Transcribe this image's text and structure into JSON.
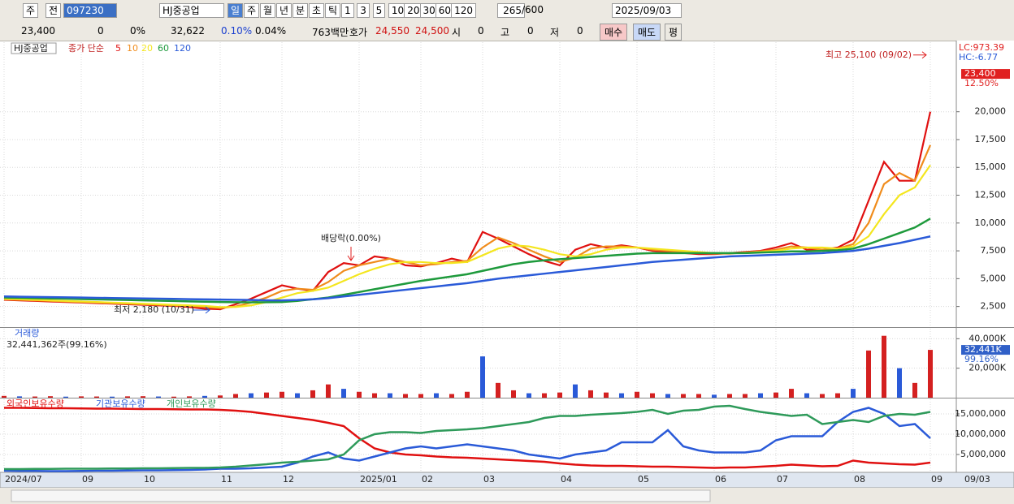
{
  "toolbar": {
    "market": "주",
    "prev": "전",
    "code": "097230",
    "name": "HJ중공업",
    "periods": [
      "일",
      "주",
      "월",
      "년",
      "분",
      "초",
      "틱"
    ],
    "minutes": [
      "1",
      "3",
      "5",
      "10",
      "20",
      "30",
      "60",
      "120"
    ],
    "count": "265",
    "max_count": "/600",
    "date": "2025/09/03"
  },
  "quote_bar": {
    "price": "23,400",
    "change": "0",
    "change_rate": "0%",
    "volume": "32,622",
    "ratio1": "0.10%",
    "ratio2": "0.04%",
    "amount": "763백만",
    "ask_label": "호가",
    "ask": "24,550",
    "bid": "24,500",
    "open_label": "시",
    "open": "0",
    "high_label": "고",
    "high": "0",
    "low_label": "저",
    "low": "0",
    "buy": "매수",
    "sell": "매도",
    "avg": "평"
  },
  "chart_data": [
    {
      "type": "line",
      "title": "HJ중공업",
      "subtitle": "종가 단순",
      "lc_label": "LC:973.39",
      "hc_label": "HC:-6.77",
      "ylim": [
        650,
        26250
      ],
      "yticks": [
        {
          "value": 2500,
          "label": "2,500"
        },
        {
          "value": 5000,
          "label": "5,000"
        },
        {
          "value": 7500,
          "label": "7,500"
        },
        {
          "value": 10000,
          "label": "10,000"
        },
        {
          "value": 12500,
          "label": "12,500"
        },
        {
          "value": 15000,
          "label": "15,000"
        },
        {
          "value": 17500,
          "label": "17,500"
        },
        {
          "value": 20000,
          "label": "20,000"
        }
      ],
      "grid": true,
      "last_label": {
        "value": 23400,
        "label": "23,400"
      },
      "last_change": "12.50%",
      "high_note": {
        "value": 25100,
        "label": "최고 25,100 (09/02)"
      },
      "low_note": {
        "value": 2180,
        "label": "최저 2,180 (10/31)"
      },
      "dividend_note": "배당락(0.00%)",
      "series": [
        {
          "name": "5",
          "color": "#e01010",
          "values": [
            3100,
            3050,
            3000,
            2950,
            2900,
            2850,
            2800,
            2750,
            2700,
            2650,
            2600,
            2550,
            2450,
            2300,
            2250,
            2700,
            3200,
            3800,
            4400,
            4100,
            3900,
            5600,
            6400,
            6200,
            7000,
            6800,
            6200,
            6100,
            6400,
            6800,
            6500,
            9200,
            8600,
            7900,
            7200,
            6600,
            6200,
            7600,
            8100,
            7800,
            8000,
            7800,
            7500,
            7400,
            7300,
            7200,
            7200,
            7300,
            7400,
            7500,
            7800,
            8200,
            7600,
            7600,
            7800,
            8500,
            12000,
            15500,
            13800,
            13800,
            20000
          ]
        },
        {
          "name": "10",
          "color": "#f08c1c",
          "values": [
            3150,
            3100,
            3050,
            3000,
            2950,
            2900,
            2850,
            2800,
            2750,
            2700,
            2650,
            2600,
            2550,
            2450,
            2350,
            2500,
            2850,
            3300,
            3900,
            4100,
            4000,
            4700,
            5700,
            6200,
            6500,
            6800,
            6500,
            6200,
            6300,
            6500,
            6600,
            7800,
            8700,
            8200,
            7600,
            7000,
            6500,
            6900,
            7700,
            7900,
            7900,
            7800,
            7600,
            7500,
            7400,
            7300,
            7250,
            7250,
            7350,
            7450,
            7600,
            7900,
            7800,
            7600,
            7700,
            8100,
            10000,
            13500,
            14500,
            13800,
            17000
          ]
        },
        {
          "name": "20",
          "color": "#f4e61e",
          "values": [
            3200,
            3150,
            3100,
            3050,
            3000,
            2950,
            2900,
            2850,
            2800,
            2750,
            2700,
            2650,
            2600,
            2550,
            2450,
            2450,
            2600,
            2900,
            3300,
            3700,
            3900,
            4200,
            4800,
            5400,
            5900,
            6300,
            6500,
            6500,
            6400,
            6400,
            6500,
            7100,
            7700,
            8000,
            7900,
            7600,
            7200,
            7000,
            7200,
            7600,
            7800,
            7800,
            7700,
            7600,
            7500,
            7400,
            7300,
            7300,
            7300,
            7400,
            7500,
            7700,
            7800,
            7800,
            7700,
            7900,
            8800,
            10800,
            12500,
            13200,
            15200
          ]
        },
        {
          "name": "60",
          "color": "#1e9a3c",
          "values": [
            3300,
            3280,
            3250,
            3220,
            3200,
            3170,
            3140,
            3110,
            3080,
            3050,
            3020,
            2990,
            2960,
            2930,
            2900,
            2880,
            2870,
            2880,
            2900,
            3000,
            3150,
            3300,
            3550,
            3800,
            4050,
            4300,
            4550,
            4800,
            5000,
            5200,
            5400,
            5700,
            6000,
            6300,
            6500,
            6650,
            6750,
            6850,
            6950,
            7050,
            7150,
            7250,
            7300,
            7300,
            7300,
            7300,
            7300,
            7300,
            7300,
            7350,
            7400,
            7450,
            7450,
            7500,
            7550,
            7700,
            8100,
            8600,
            9100,
            9600,
            10400
          ]
        },
        {
          "name": "120",
          "color": "#2a5ad8",
          "values": [
            3400,
            3380,
            3360,
            3340,
            3320,
            3300,
            3280,
            3260,
            3240,
            3220,
            3200,
            3180,
            3160,
            3140,
            3120,
            3100,
            3080,
            3060,
            3050,
            3080,
            3150,
            3250,
            3400,
            3550,
            3700,
            3850,
            4000,
            4150,
            4300,
            4450,
            4600,
            4800,
            5000,
            5150,
            5300,
            5450,
            5600,
            5750,
            5900,
            6050,
            6200,
            6350,
            6500,
            6600,
            6700,
            6800,
            6900,
            7000,
            7050,
            7100,
            7150,
            7200,
            7250,
            7300,
            7400,
            7500,
            7700,
            7950,
            8200,
            8500,
            8800
          ]
        }
      ]
    },
    {
      "type": "bar",
      "title": "거래량",
      "subtitle": "32,441,362주(99.16%)",
      "ylim": [
        0,
        46800
      ],
      "yticks": [
        {
          "value": 20000,
          "label": "20,000K"
        },
        {
          "value": 40000,
          "label": "40,000K"
        }
      ],
      "grid": true,
      "color": "#d42020",
      "last_label": {
        "value": 32441,
        "label": "32,441K"
      },
      "last_change": "99.16%",
      "values": [
        1200,
        900,
        800,
        1000,
        700,
        900,
        800,
        700,
        900,
        1000,
        800,
        700,
        900,
        1200,
        1500,
        2500,
        3000,
        3500,
        4000,
        3000,
        5000,
        9000,
        6000,
        4000,
        3000,
        3000,
        2500,
        2500,
        3000,
        2500,
        4000,
        28000,
        10000,
        5000,
        3000,
        3000,
        3500,
        9000,
        5000,
        3500,
        3000,
        4000,
        3000,
        2500,
        2500,
        2500,
        2000,
        2500,
        2500,
        3000,
        3500,
        6000,
        3000,
        2500,
        3000,
        6000,
        32000,
        42000,
        20000,
        10000,
        32441
      ]
    },
    {
      "type": "line",
      "ylim": [
        600000,
        18600000
      ],
      "yticks": [
        {
          "value": 5000000,
          "label": "5,000,000"
        },
        {
          "value": 10000000,
          "label": "10,000,000"
        },
        {
          "value": 15000000,
          "label": "15,000,000"
        }
      ],
      "grid": true,
      "categories": [
        "2024/07",
        null,
        null,
        null,
        null,
        "09",
        null,
        null,
        null,
        "10",
        null,
        null,
        null,
        null,
        "11",
        null,
        null,
        null,
        "12",
        null,
        null,
        null,
        null,
        "2025/01",
        null,
        null,
        null,
        "02",
        null,
        null,
        null,
        "03",
        null,
        null,
        null,
        null,
        "04",
        null,
        null,
        null,
        null,
        "05",
        null,
        null,
        null,
        null,
        "06",
        null,
        null,
        null,
        "07",
        null,
        null,
        null,
        null,
        "08",
        null,
        null,
        null,
        null,
        "09"
      ],
      "x_end_label": "09/03",
      "series": [
        {
          "name": "외국인보유수량",
          "color": "#e01010",
          "values": [
            16500000,
            16500000,
            16450000,
            16400000,
            16400000,
            16350000,
            16300000,
            16300000,
            16250000,
            16200000,
            16200000,
            16150000,
            16100000,
            16100000,
            16000000,
            15800000,
            15500000,
            15000000,
            14500000,
            14000000,
            13500000,
            12800000,
            12000000,
            9000000,
            6500000,
            5500000,
            5000000,
            4800000,
            4500000,
            4300000,
            4200000,
            4000000,
            3800000,
            3600000,
            3400000,
            3200000,
            2800000,
            2500000,
            2300000,
            2200000,
            2200000,
            2100000,
            2000000,
            2000000,
            1900000,
            1800000,
            1700000,
            1800000,
            1800000,
            2000000,
            2200000,
            2500000,
            2300000,
            2100000,
            2200000,
            3500000,
            3000000,
            2800000,
            2600000,
            2500000,
            3000000
          ]
        },
        {
          "name": "기관보유수량",
          "color": "#2a5ad8",
          "values": [
            1000000,
            950000,
            950000,
            900000,
            900000,
            950000,
            1000000,
            1000000,
            1050000,
            1100000,
            1100000,
            1150000,
            1200000,
            1300000,
            1500000,
            1500000,
            1600000,
            1800000,
            2000000,
            3000000,
            4500000,
            5500000,
            4000000,
            3500000,
            4500000,
            5500000,
            6500000,
            7000000,
            6500000,
            7000000,
            7500000,
            7000000,
            6500000,
            6000000,
            5000000,
            4500000,
            4000000,
            5000000,
            5500000,
            6000000,
            8000000,
            8000000,
            8000000,
            11000000,
            7000000,
            6000000,
            5500000,
            5500000,
            5500000,
            6000000,
            8500000,
            9500000,
            9500000,
            9500000,
            13000000,
            15500000,
            16500000,
            15000000,
            12000000,
            12500000,
            9000000
          ]
        },
        {
          "name": "개인보유수량",
          "color": "#2e9a5a",
          "values": [
            1400000,
            1400000,
            1450000,
            1450000,
            1500000,
            1500000,
            1500000,
            1550000,
            1550000,
            1600000,
            1600000,
            1650000,
            1700000,
            1700000,
            1800000,
            2000000,
            2300000,
            2600000,
            3000000,
            3200000,
            3500000,
            3800000,
            5000000,
            8500000,
            10000000,
            10500000,
            10500000,
            10300000,
            10800000,
            11000000,
            11200000,
            11500000,
            12000000,
            12500000,
            13000000,
            14000000,
            14500000,
            14500000,
            14800000,
            15000000,
            15200000,
            15500000,
            16000000,
            15000000,
            15800000,
            16000000,
            16800000,
            17000000,
            16200000,
            15500000,
            15000000,
            14500000,
            14800000,
            12500000,
            13000000,
            13500000,
            13000000,
            14500000,
            15000000,
            14800000,
            15500000
          ]
        }
      ]
    }
  ]
}
